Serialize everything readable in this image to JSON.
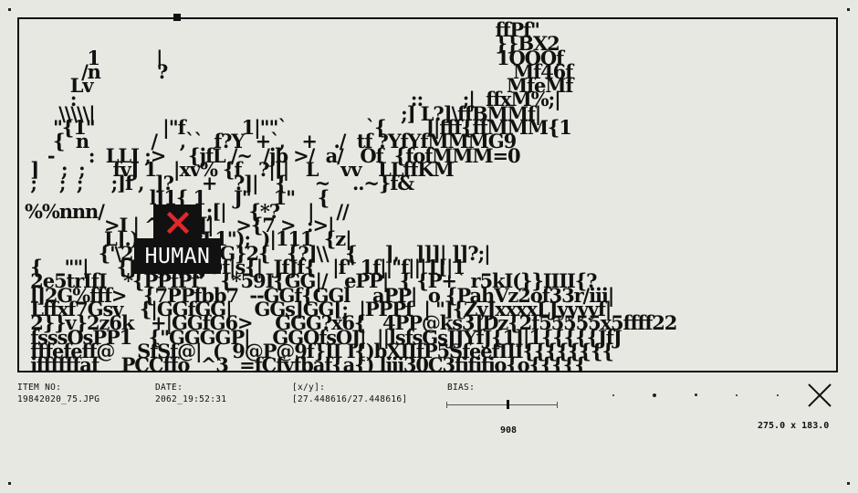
{
  "art_text": "                                                                                   ffPf\"\n                                                                                   }}BX2\n           1          |                                                           1OOOf\n          /n          ?                                                             Mf46f\n        Lv                                                                         MfeMf\n        :                                                           ::       ;|  ffxM%;|\n      \\\\\\\\\\|                                                      ;] L?]\\ffBMMf|\n     \"{1\"            |\"f          1|\"\"`              `{       ]|fff{ffMMM{1\n     {  n           /    ,``  f?Y  +`,   +   ./  tf ?YfYfMMMG9\n    -      :  LLI ;>    {jfL /~  /jb >/  a/   Of  {fofMMM=0\n ]    ;  ;     fvJ 1   |xv% {f   ?|[|   L    vv   LLffKM\n ;    ;  ;     ;]f ,  ]?     +   ?]|   {     ~    ..~}f&\n                      lJ1{ 1     J\"    1\"    {\n%%nnn/                  ;[|    {*?     |    //\n              >I | ^       [|    >{7 >  :>|\n              L].)    \" ){fL1\");  )|111  {z|\n             {'\\2]    {.{+kG}2{   {?]\\\\   {     ],   ]]]| ]]?;|\n {    \"\"|     {JfffJ  |\"|JOf|s{|  JfJf{   |f\" 1f||\"f|||1[|1\n 2e5trIfI   *{PPfPf'   {*59I{GG|/   ePP|  { {P+` r5kI(}}IIII{?\n l]2G%fff>   {7PPfbb7  --GGf{GGl    aPP|  o {PahVz2of33r/iii|\n Lffxf7Gsv   {|GGfGG|    GGs]GG[;  |PPPf  | \"]{ZyJxxxxLJyyyyf|\n 2}}v}2z6k   +|GGfG6>    GGG?x6{   4PP@ks3]Dz{2f55555x5ffff22\n fsssOsPP1   {\"GGGGP|    GGOfsOJ|  ||lsfsGsJJYfJ{1]|1{{{{{JfJ\n fffefeff@    SfSf@|  (  9@P@9f}II I{)bXIIfP5SfeefIII{{{{{{{{\n jffffffaf    PCCffo  ^3  =fCfyfbaf{a{) ljjj30C3fjfjfjo{o{{{{{",
  "tag": {
    "label": "HUMAN",
    "icon": "close-cross-icon",
    "icon_color": "#e0282a"
  },
  "item": {
    "label": "ITEM NO:",
    "value": "19842020_75.JPG"
  },
  "date": {
    "label": "DATE:",
    "value": "2062_19:52:31"
  },
  "coords": {
    "label": "[x/y]:",
    "value": "[27.448616/27.448616]"
  },
  "bias": {
    "label": "BIAS:",
    "value": "908",
    "level": 0.55
  },
  "dimensions": "275.0 x 183.0",
  "close_icon": "close-icon",
  "colors": {
    "background": "#e7e8e1",
    "ink": "#111111",
    "accent": "#e0282a"
  }
}
